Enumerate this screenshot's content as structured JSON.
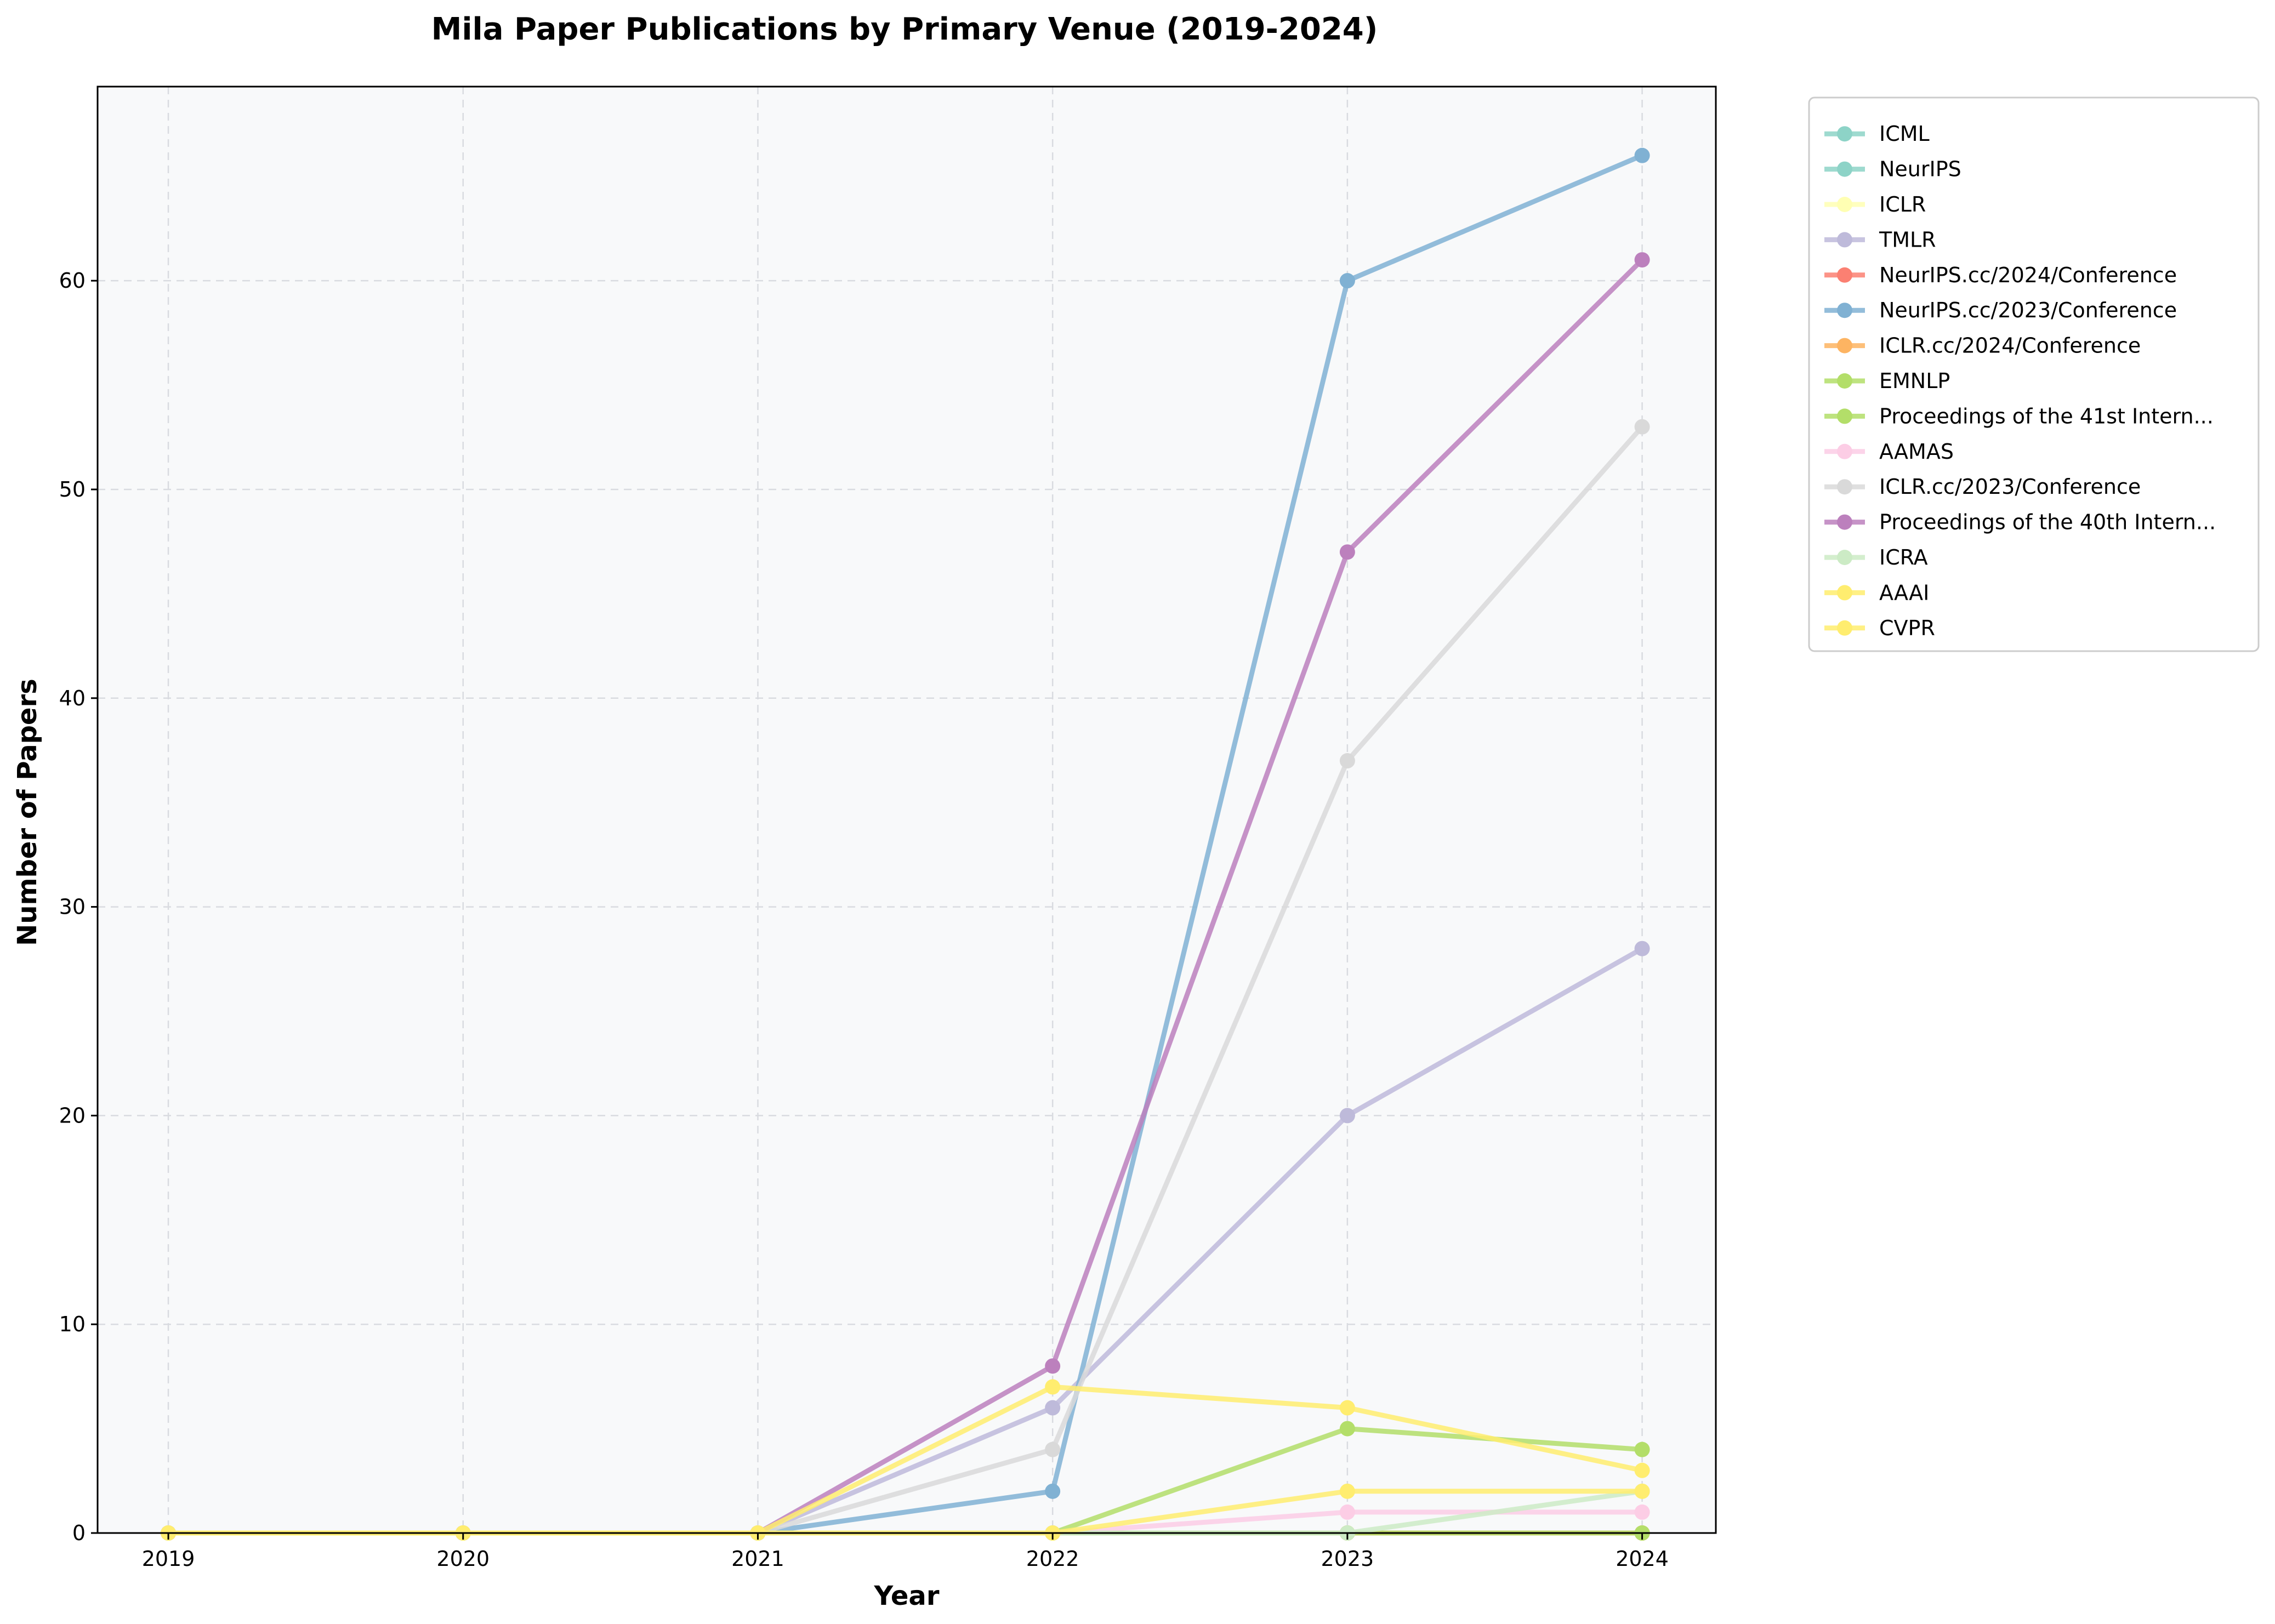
{
  "chart_data": {
    "type": "line",
    "title": "Mila Paper Publications by Primary Venue (2019-2024)",
    "xlabel": "Year",
    "ylabel": "Number of Papers",
    "x": [
      2019,
      2020,
      2021,
      2022,
      2023,
      2024
    ],
    "xlim": [
      2018.76,
      2024.25
    ],
    "ylim": [
      0,
      69.3
    ],
    "yticks": [
      0,
      10,
      20,
      30,
      40,
      50,
      60
    ],
    "grid": true,
    "legend_position": "outside-top-right",
    "plot_background": "#f8f9fa",
    "series": [
      {
        "name": "ICML",
        "color": "#8dd3c7",
        "values": [
          0,
          0,
          0,
          0,
          0,
          0
        ]
      },
      {
        "name": "NeurIPS",
        "color": "#8dd3c7",
        "values": [
          0,
          0,
          0,
          0,
          0,
          0
        ]
      },
      {
        "name": "ICLR",
        "color": "#ffffb3",
        "values": [
          0,
          0,
          0,
          0,
          0,
          0
        ]
      },
      {
        "name": "TMLR",
        "color": "#bebada",
        "values": [
          0,
          0,
          0,
          6,
          20,
          28
        ]
      },
      {
        "name": "NeurIPS.cc/2024/Conference",
        "color": "#fb8072",
        "values": [
          0,
          0,
          0,
          0,
          0,
          0
        ]
      },
      {
        "name": "NeurIPS.cc/2023/Conference",
        "color": "#80b1d3",
        "values": [
          0,
          0,
          0,
          2,
          60,
          66
        ]
      },
      {
        "name": "ICLR.cc/2024/Conference",
        "color": "#fdb462",
        "values": [
          0,
          0,
          0,
          0,
          0,
          0
        ]
      },
      {
        "name": "EMNLP",
        "color": "#b3de69",
        "values": [
          0,
          0,
          0,
          0,
          5,
          4
        ]
      },
      {
        "name": "Proceedings of the 41st Intern...",
        "color": "#b3de69",
        "values": [
          0,
          0,
          0,
          0,
          0,
          0
        ]
      },
      {
        "name": "AAMAS",
        "color": "#fccde5",
        "values": [
          0,
          0,
          0,
          0,
          1,
          1
        ]
      },
      {
        "name": "ICLR.cc/2023/Conference",
        "color": "#d9d9d9",
        "values": [
          0,
          0,
          0,
          4,
          37,
          53
        ]
      },
      {
        "name": "Proceedings of the 40th Intern...",
        "color": "#bc80bd",
        "values": [
          0,
          0,
          0,
          8,
          47,
          61
        ]
      },
      {
        "name": "ICRA",
        "color": "#ccebc5",
        "values": [
          0,
          0,
          0,
          0,
          0,
          2
        ]
      },
      {
        "name": "AAAI",
        "color": "#ffed6f",
        "values": [
          0,
          0,
          0,
          0,
          2,
          2
        ]
      },
      {
        "name": "CVPR",
        "color": "#ffed6f",
        "values": [
          0,
          0,
          0,
          7,
          6,
          3
        ]
      }
    ]
  }
}
